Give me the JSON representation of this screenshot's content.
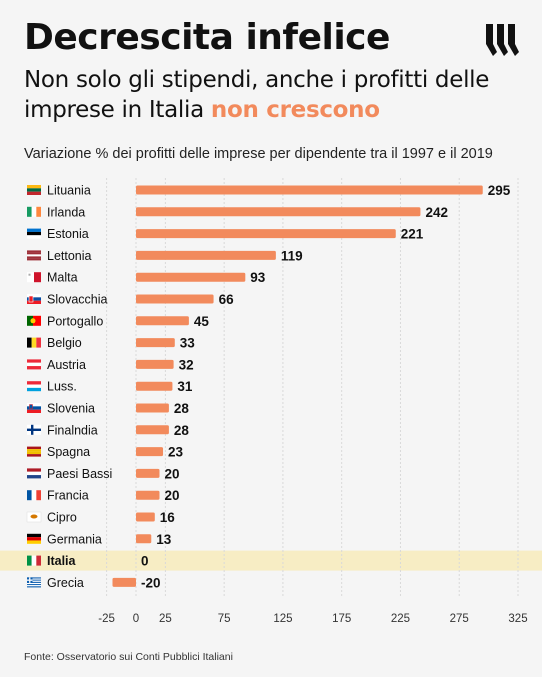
{
  "header": {
    "title": "Decrescita infelice",
    "subtitle_part1": "Non solo gli stipendi, anche i profitti delle imprese in Italia ",
    "subtitle_accent": "non crescono",
    "logo_icon": "brand-logo-icon"
  },
  "footer": {
    "source": "Fonte: Osservatorio sui Conti Pubblici Italiani"
  },
  "colors": {
    "bar": "#f28a5c",
    "highlight_band": "#f7edc4",
    "grid": "#d9d9d9"
  },
  "chart_data": {
    "type": "bar",
    "orientation": "horizontal",
    "title": "Variazione % dei profitti delle imprese per dipendente tra il 1997 e il 2019",
    "categories": [
      "Lituania",
      "Irlanda",
      "Estonia",
      "Lettonia",
      "Malta",
      "Slovacchia",
      "Portogallo",
      "Belgio",
      "Austria",
      "Luss.",
      "Slovenia",
      "Finalndia",
      "Spagna",
      "Paesi Bassi",
      "Francia",
      "Cipro",
      "Germania",
      "Italia",
      "Grecia"
    ],
    "values": [
      295,
      242,
      221,
      119,
      93,
      66,
      45,
      33,
      32,
      31,
      28,
      28,
      23,
      20,
      20,
      16,
      13,
      0,
      -20
    ],
    "highlight": "Italia",
    "xlim": [
      -25,
      325
    ],
    "xticks": [
      -25,
      0,
      25,
      75,
      125,
      175,
      225,
      275,
      325
    ],
    "grid": true,
    "flag_icons": [
      "flag-lithuania-icon",
      "flag-ireland-icon",
      "flag-estonia-icon",
      "flag-latvia-icon",
      "flag-malta-icon",
      "flag-slovakia-icon",
      "flag-portugal-icon",
      "flag-belgium-icon",
      "flag-austria-icon",
      "flag-luxembourg-icon",
      "flag-slovenia-icon",
      "flag-finland-icon",
      "flag-spain-icon",
      "flag-netherlands-icon",
      "flag-france-icon",
      "flag-cyprus-icon",
      "flag-germany-icon",
      "flag-italy-icon",
      "flag-greece-icon"
    ]
  }
}
